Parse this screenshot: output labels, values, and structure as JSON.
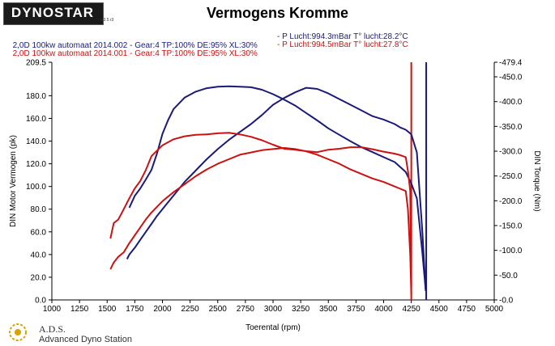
{
  "header": {
    "logo_text": "DYNOSTAR",
    "logo_sub": "v.3.5 r3",
    "title": "Vermogens Kromme"
  },
  "runs": [
    {
      "label": "2,0D 100kw automaat 2014.002 - Gear:4 TP:100% DE:95% XL:30%",
      "conditions": "- P Lucht:994.3mBar T° lucht:28.2°C",
      "color": "#1a1a7a"
    },
    {
      "label": "2,0D 100kw automaat 2014.001 - Gear:4 TP:100% DE:95% XL:30%",
      "conditions": "- P Lucht:994.5mBar T° lucht:27.8°C",
      "color": "#cc1111"
    }
  ],
  "footer": {
    "brand": "A.D.S.",
    "subtitle": "Advanced Dyno Station"
  },
  "chart_data": {
    "type": "line",
    "xlabel": "Toerental (rpm)",
    "ylabel_left": "DIN Motor Vermogen (pk)",
    "ylabel_right": "DIN Torque (Nm)",
    "xlim": [
      1000,
      5000
    ],
    "xticks": [
      1000,
      1250,
      1500,
      1750,
      2000,
      2250,
      2500,
      2750,
      3000,
      3250,
      3500,
      3750,
      4000,
      4250,
      4500,
      4750,
      5000
    ],
    "ylim_left": [
      0,
      209.5
    ],
    "yticks_left": [
      0,
      20,
      40,
      60,
      80,
      100,
      120,
      140,
      160,
      180,
      209.5
    ],
    "ylim_right": [
      0,
      479.4
    ],
    "yticks_right": [
      0,
      50,
      100,
      150,
      200,
      250,
      300,
      350,
      400,
      450,
      479.4
    ],
    "grid": false,
    "series": [
      {
        "run": 0,
        "quantity": "power",
        "axis": "left",
        "color": "#1a1a7a",
        "points": [
          [
            1680,
            36
          ],
          [
            1700,
            40
          ],
          [
            1750,
            46
          ],
          [
            1800,
            53
          ],
          [
            1850,
            60
          ],
          [
            1900,
            67
          ],
          [
            1950,
            74
          ],
          [
            2000,
            80
          ],
          [
            2100,
            92
          ],
          [
            2200,
            104
          ],
          [
            2300,
            114
          ],
          [
            2400,
            124
          ],
          [
            2500,
            133
          ],
          [
            2600,
            141
          ],
          [
            2700,
            148
          ],
          [
            2800,
            155
          ],
          [
            2900,
            163
          ],
          [
            3000,
            172
          ],
          [
            3100,
            178
          ],
          [
            3200,
            183
          ],
          [
            3300,
            187
          ],
          [
            3400,
            186
          ],
          [
            3500,
            182
          ],
          [
            3600,
            177
          ],
          [
            3700,
            172
          ],
          [
            3800,
            167
          ],
          [
            3900,
            162
          ],
          [
            4000,
            159
          ],
          [
            4100,
            155
          ],
          [
            4150,
            152
          ],
          [
            4200,
            150
          ],
          [
            4250,
            146
          ],
          [
            4300,
            130
          ],
          [
            4350,
            60
          ],
          [
            4380,
            8
          ]
        ]
      },
      {
        "run": 0,
        "quantity": "torque",
        "axis": "right",
        "color": "#1a1a7a",
        "points": [
          [
            1700,
            186
          ],
          [
            1750,
            210
          ],
          [
            1800,
            225
          ],
          [
            1850,
            243
          ],
          [
            1900,
            262
          ],
          [
            1950,
            295
          ],
          [
            2000,
            335
          ],
          [
            2050,
            362
          ],
          [
            2100,
            385
          ],
          [
            2200,
            408
          ],
          [
            2300,
            420
          ],
          [
            2400,
            427
          ],
          [
            2500,
            430
          ],
          [
            2600,
            431
          ],
          [
            2700,
            430
          ],
          [
            2800,
            429
          ],
          [
            2900,
            424
          ],
          [
            3000,
            415
          ],
          [
            3100,
            404
          ],
          [
            3200,
            392
          ],
          [
            3300,
            377
          ],
          [
            3400,
            362
          ],
          [
            3500,
            346
          ],
          [
            3600,
            333
          ],
          [
            3700,
            320
          ],
          [
            3800,
            308
          ],
          [
            3900,
            298
          ],
          [
            4000,
            288
          ],
          [
            4100,
            278
          ],
          [
            4200,
            258
          ],
          [
            4250,
            235
          ],
          [
            4300,
            205
          ],
          [
            4350,
            95
          ],
          [
            4380,
            20
          ]
        ]
      },
      {
        "run": 1,
        "quantity": "power",
        "axis": "left",
        "color": "#cc1111",
        "points": [
          [
            1530,
            27
          ],
          [
            1560,
            33
          ],
          [
            1600,
            38
          ],
          [
            1650,
            42
          ],
          [
            1700,
            50
          ],
          [
            1750,
            57
          ],
          [
            1800,
            64
          ],
          [
            1850,
            71
          ],
          [
            1900,
            77
          ],
          [
            2000,
            87
          ],
          [
            2100,
            95
          ],
          [
            2200,
            102
          ],
          [
            2300,
            109
          ],
          [
            2400,
            115
          ],
          [
            2500,
            120
          ],
          [
            2600,
            124
          ],
          [
            2700,
            128
          ],
          [
            2800,
            130
          ],
          [
            2900,
            132
          ],
          [
            3000,
            133
          ],
          [
            3100,
            134
          ],
          [
            3200,
            133
          ],
          [
            3300,
            131
          ],
          [
            3400,
            128
          ],
          [
            3500,
            124
          ],
          [
            3600,
            120
          ],
          [
            3700,
            115
          ],
          [
            3800,
            111
          ],
          [
            3900,
            107
          ],
          [
            4000,
            104
          ],
          [
            4100,
            100
          ],
          [
            4150,
            98
          ],
          [
            4200,
            96
          ],
          [
            4220,
            80
          ],
          [
            4240,
            40
          ],
          [
            4250,
            5
          ]
        ]
      },
      {
        "run": 1,
        "quantity": "torque",
        "axis": "right",
        "color": "#cc1111",
        "points": [
          [
            1530,
            124
          ],
          [
            1560,
            155
          ],
          [
            1600,
            162
          ],
          [
            1650,
            183
          ],
          [
            1700,
            205
          ],
          [
            1750,
            225
          ],
          [
            1800,
            240
          ],
          [
            1850,
            262
          ],
          [
            1900,
            290
          ],
          [
            2000,
            312
          ],
          [
            2100,
            324
          ],
          [
            2200,
            330
          ],
          [
            2300,
            333
          ],
          [
            2400,
            334
          ],
          [
            2500,
            336
          ],
          [
            2600,
            337
          ],
          [
            2700,
            334
          ],
          [
            2800,
            329
          ],
          [
            2900,
            322
          ],
          [
            3000,
            313
          ],
          [
            3100,
            305
          ],
          [
            3200,
            303
          ],
          [
            3300,
            300
          ],
          [
            3400,
            298
          ],
          [
            3500,
            303
          ],
          [
            3600,
            305
          ],
          [
            3700,
            308
          ],
          [
            3800,
            308
          ],
          [
            3900,
            304
          ],
          [
            4000,
            299
          ],
          [
            4100,
            295
          ],
          [
            4150,
            292
          ],
          [
            4200,
            288
          ],
          [
            4220,
            260
          ],
          [
            4240,
            220
          ],
          [
            4250,
            30
          ]
        ]
      }
    ],
    "markers": [
      {
        "rpm": 4250,
        "color": "#cc1111"
      },
      {
        "rpm": 4385,
        "color": "#1a1a7a"
      }
    ]
  }
}
